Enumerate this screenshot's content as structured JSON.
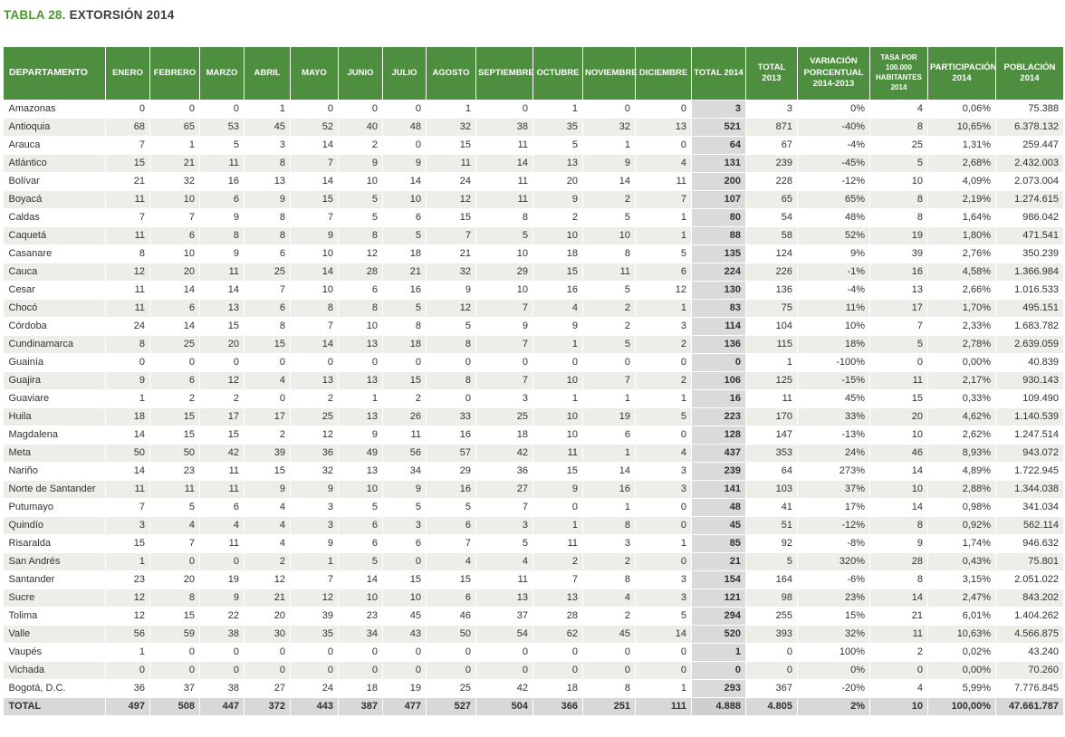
{
  "title": {
    "number": "TABLA 28.",
    "text": "EXTORSIÓN 2014"
  },
  "colors": {
    "header-bg": "#4d8f3e",
    "header-text": "#ffffff",
    "title-accent": "#4c9633",
    "stripe": "#ecefe8",
    "total-col-bg": "#dadada",
    "total-row-bg": "#d8d8d8",
    "body-text": "#313130"
  },
  "table": {
    "columns": [
      {
        "id": "departamento",
        "label": "DEPARTAMENTO"
      },
      {
        "id": "enero",
        "label": "ENERO"
      },
      {
        "id": "febrero",
        "label": "FEBRERO"
      },
      {
        "id": "marzo",
        "label": "MARZO"
      },
      {
        "id": "abril",
        "label": "ABRIL"
      },
      {
        "id": "mayo",
        "label": "MAYO"
      },
      {
        "id": "junio",
        "label": "JUNIO"
      },
      {
        "id": "julio",
        "label": "JULIO"
      },
      {
        "id": "agosto",
        "label": "AGOSTO"
      },
      {
        "id": "septiembre",
        "label": "SEPTIEMBRE"
      },
      {
        "id": "octubre",
        "label": "OCTUBRE"
      },
      {
        "id": "noviembre",
        "label": "NOVIEMBRE"
      },
      {
        "id": "diciembre",
        "label": "DICIEMBRE"
      },
      {
        "id": "total_2014",
        "label": "TOTAL 2014"
      },
      {
        "id": "total_2013",
        "label": "TOTAL 2013"
      },
      {
        "id": "variacion",
        "label": "VARIACIÓN\nPORCENTUAL\n2014-2013"
      },
      {
        "id": "tasa",
        "label": "TASA POR\n100.000\nHABITANTES\n2014",
        "small": true
      },
      {
        "id": "participacion",
        "label": "PARTICIPACIÓN\n2014"
      },
      {
        "id": "poblacion",
        "label": "POBLACIÓN\n2014"
      }
    ],
    "rows": [
      [
        "Amazonas",
        "0",
        "0",
        "0",
        "1",
        "0",
        "0",
        "0",
        "1",
        "0",
        "1",
        "0",
        "0",
        "3",
        "3",
        "0%",
        "4",
        "0,06%",
        "75.388"
      ],
      [
        "Antioquia",
        "68",
        "65",
        "53",
        "45",
        "52",
        "40",
        "48",
        "32",
        "38",
        "35",
        "32",
        "13",
        "521",
        "871",
        "-40%",
        "8",
        "10,65%",
        "6.378.132"
      ],
      [
        "Arauca",
        "7",
        "1",
        "5",
        "3",
        "14",
        "2",
        "0",
        "15",
        "11",
        "5",
        "1",
        "0",
        "64",
        "67",
        "-4%",
        "25",
        "1,31%",
        "259.447"
      ],
      [
        "Atlántico",
        "15",
        "21",
        "11",
        "8",
        "7",
        "9",
        "9",
        "11",
        "14",
        "13",
        "9",
        "4",
        "131",
        "239",
        "-45%",
        "5",
        "2,68%",
        "2.432.003"
      ],
      [
        "Bolívar",
        "21",
        "32",
        "16",
        "13",
        "14",
        "10",
        "14",
        "24",
        "11",
        "20",
        "14",
        "11",
        "200",
        "228",
        "-12%",
        "10",
        "4,09%",
        "2.073.004"
      ],
      [
        "Boyacá",
        "11",
        "10",
        "6",
        "9",
        "15",
        "5",
        "10",
        "12",
        "11",
        "9",
        "2",
        "7",
        "107",
        "65",
        "65%",
        "8",
        "2,19%",
        "1.274.615"
      ],
      [
        "Caldas",
        "7",
        "7",
        "9",
        "8",
        "7",
        "5",
        "6",
        "15",
        "8",
        "2",
        "5",
        "1",
        "80",
        "54",
        "48%",
        "8",
        "1,64%",
        "986.042"
      ],
      [
        "Caquetá",
        "11",
        "6",
        "8",
        "8",
        "9",
        "8",
        "5",
        "7",
        "5",
        "10",
        "10",
        "1",
        "88",
        "58",
        "52%",
        "19",
        "1,80%",
        "471.541"
      ],
      [
        "Casanare",
        "8",
        "10",
        "9",
        "6",
        "10",
        "12",
        "18",
        "21",
        "10",
        "18",
        "8",
        "5",
        "135",
        "124",
        "9%",
        "39",
        "2,76%",
        "350.239"
      ],
      [
        "Cauca",
        "12",
        "20",
        "11",
        "25",
        "14",
        "28",
        "21",
        "32",
        "29",
        "15",
        "11",
        "6",
        "224",
        "226",
        "-1%",
        "16",
        "4,58%",
        "1.366.984"
      ],
      [
        "Cesar",
        "11",
        "14",
        "14",
        "7",
        "10",
        "6",
        "16",
        "9",
        "10",
        "16",
        "5",
        "12",
        "130",
        "136",
        "-4%",
        "13",
        "2,66%",
        "1.016.533"
      ],
      [
        "Chocó",
        "11",
        "6",
        "13",
        "6",
        "8",
        "8",
        "5",
        "12",
        "7",
        "4",
        "2",
        "1",
        "83",
        "75",
        "11%",
        "17",
        "1,70%",
        "495.151"
      ],
      [
        "Córdoba",
        "24",
        "14",
        "15",
        "8",
        "7",
        "10",
        "8",
        "5",
        "9",
        "9",
        "2",
        "3",
        "114",
        "104",
        "10%",
        "7",
        "2,33%",
        "1.683.782"
      ],
      [
        "Cundinamarca",
        "8",
        "25",
        "20",
        "15",
        "14",
        "13",
        "18",
        "8",
        "7",
        "1",
        "5",
        "2",
        "136",
        "115",
        "18%",
        "5",
        "2,78%",
        "2.639.059"
      ],
      [
        "Guainía",
        "0",
        "0",
        "0",
        "0",
        "0",
        "0",
        "0",
        "0",
        "0",
        "0",
        "0",
        "0",
        "0",
        "1",
        "-100%",
        "0",
        "0,00%",
        "40.839"
      ],
      [
        "Guajira",
        "9",
        "6",
        "12",
        "4",
        "13",
        "13",
        "15",
        "8",
        "7",
        "10",
        "7",
        "2",
        "106",
        "125",
        "-15%",
        "11",
        "2,17%",
        "930.143"
      ],
      [
        "Guaviare",
        "1",
        "2",
        "2",
        "0",
        "2",
        "1",
        "2",
        "0",
        "3",
        "1",
        "1",
        "1",
        "16",
        "11",
        "45%",
        "15",
        "0,33%",
        "109.490"
      ],
      [
        "Huila",
        "18",
        "15",
        "17",
        "17",
        "25",
        "13",
        "26",
        "33",
        "25",
        "10",
        "19",
        "5",
        "223",
        "170",
        "33%",
        "20",
        "4,62%",
        "1.140.539"
      ],
      [
        "Magdalena",
        "14",
        "15",
        "15",
        "2",
        "12",
        "9",
        "11",
        "16",
        "18",
        "10",
        "6",
        "0",
        "128",
        "147",
        "-13%",
        "10",
        "2,62%",
        "1.247.514"
      ],
      [
        "Meta",
        "50",
        "50",
        "42",
        "39",
        "36",
        "49",
        "56",
        "57",
        "42",
        "11",
        "1",
        "4",
        "437",
        "353",
        "24%",
        "46",
        "8,93%",
        "943.072"
      ],
      [
        "Nariño",
        "14",
        "23",
        "11",
        "15",
        "32",
        "13",
        "34",
        "29",
        "36",
        "15",
        "14",
        "3",
        "239",
        "64",
        "273%",
        "14",
        "4,89%",
        "1.722.945"
      ],
      [
        "Norte de Santander",
        "11",
        "11",
        "11",
        "9",
        "9",
        "10",
        "9",
        "16",
        "27",
        "9",
        "16",
        "3",
        "141",
        "103",
        "37%",
        "10",
        "2,88%",
        "1.344.038"
      ],
      [
        "Putumayo",
        "7",
        "5",
        "6",
        "4",
        "3",
        "5",
        "5",
        "5",
        "7",
        "0",
        "1",
        "0",
        "48",
        "41",
        "17%",
        "14",
        "0,98%",
        "341.034"
      ],
      [
        "Quindío",
        "3",
        "4",
        "4",
        "4",
        "3",
        "6",
        "3",
        "6",
        "3",
        "1",
        "8",
        "0",
        "45",
        "51",
        "-12%",
        "8",
        "0,92%",
        "562.114"
      ],
      [
        "Risaralda",
        "15",
        "7",
        "11",
        "4",
        "9",
        "6",
        "6",
        "7",
        "5",
        "11",
        "3",
        "1",
        "85",
        "92",
        "-8%",
        "9",
        "1,74%",
        "946.632"
      ],
      [
        "San Andrés",
        "1",
        "0",
        "0",
        "2",
        "1",
        "5",
        "0",
        "4",
        "4",
        "2",
        "2",
        "0",
        "21",
        "5",
        "320%",
        "28",
        "0,43%",
        "75.801"
      ],
      [
        "Santander",
        "23",
        "20",
        "19",
        "12",
        "7",
        "14",
        "15",
        "15",
        "11",
        "7",
        "8",
        "3",
        "154",
        "164",
        "-6%",
        "8",
        "3,15%",
        "2.051.022"
      ],
      [
        "Sucre",
        "12",
        "8",
        "9",
        "21",
        "12",
        "10",
        "10",
        "6",
        "13",
        "13",
        "4",
        "3",
        "121",
        "98",
        "23%",
        "14",
        "2,47%",
        "843.202"
      ],
      [
        "Tolima",
        "12",
        "15",
        "22",
        "20",
        "39",
        "23",
        "45",
        "46",
        "37",
        "28",
        "2",
        "5",
        "294",
        "255",
        "15%",
        "21",
        "6,01%",
        "1.404.262"
      ],
      [
        "Valle",
        "56",
        "59",
        "38",
        "30",
        "35",
        "34",
        "43",
        "50",
        "54",
        "62",
        "45",
        "14",
        "520",
        "393",
        "32%",
        "11",
        "10,63%",
        "4.566.875"
      ],
      [
        "Vaupés",
        "1",
        "0",
        "0",
        "0",
        "0",
        "0",
        "0",
        "0",
        "0",
        "0",
        "0",
        "0",
        "1",
        "0",
        "100%",
        "2",
        "0,02%",
        "43.240"
      ],
      [
        "Vichada",
        "0",
        "0",
        "0",
        "0",
        "0",
        "0",
        "0",
        "0",
        "0",
        "0",
        "0",
        "0",
        "0",
        "0",
        "0%",
        "0",
        "0,00%",
        "70.260"
      ],
      [
        "Bogotá, D.C.",
        "36",
        "37",
        "38",
        "27",
        "24",
        "18",
        "19",
        "25",
        "42",
        "18",
        "8",
        "1",
        "293",
        "367",
        "-20%",
        "4",
        "5,99%",
        "7.776.845"
      ]
    ],
    "total_row": [
      "TOTAL",
      "497",
      "508",
      "447",
      "372",
      "443",
      "387",
      "477",
      "527",
      "504",
      "366",
      "251",
      "111",
      "4.888",
      "4.805",
      "2%",
      "10",
      "100,00%",
      "47.661.787"
    ]
  }
}
